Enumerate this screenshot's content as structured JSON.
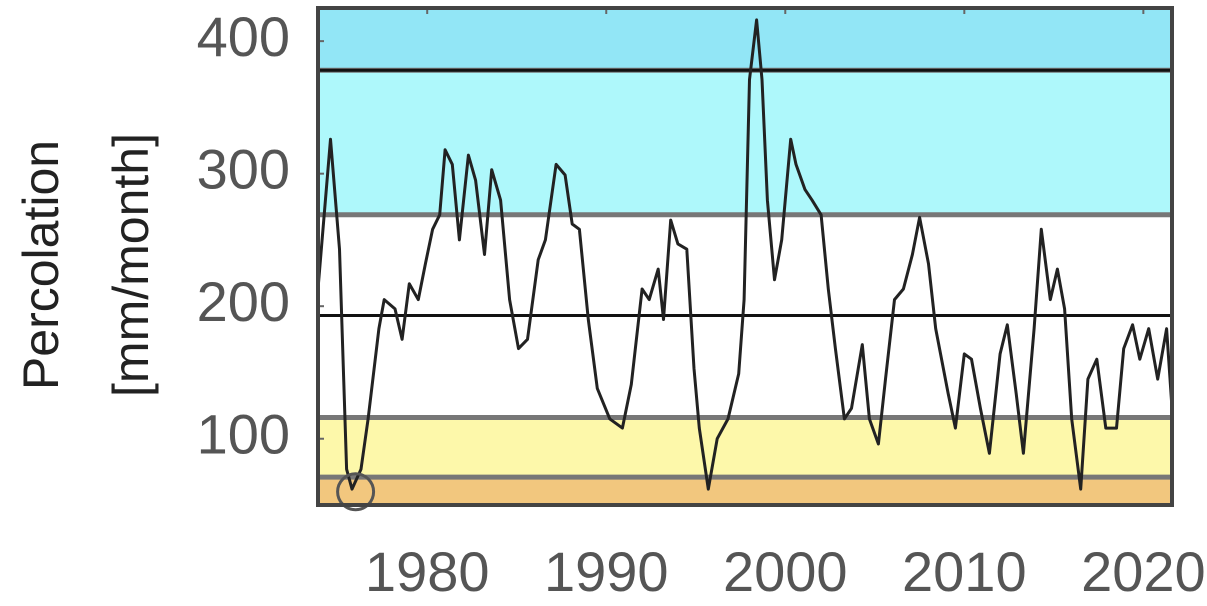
{
  "chart_data": {
    "type": "line",
    "ylabel": [
      "Percolation",
      "[mm/month]"
    ],
    "xlim": [
      1973.9,
      2021.6
    ],
    "xticks": [
      1980,
      1990,
      2000,
      2010,
      2020
    ],
    "ylim": [
      50,
      425
    ],
    "yticks": [
      100,
      200,
      300,
      400
    ],
    "bands": [
      {
        "lower": 50,
        "upper": 71,
        "color": "#f2c77e"
      },
      {
        "lower": 71,
        "upper": 116,
        "color": "#fdf8aa"
      },
      {
        "lower": 116,
        "upper": 269,
        "color": "#ffffff"
      },
      {
        "lower": 269,
        "upper": 378,
        "color": "#aef8fb"
      },
      {
        "lower": 378,
        "upper": 425,
        "color": "#92e6f6"
      }
    ],
    "hlines": [
      193,
      378
    ],
    "highlight": {
      "x": 1976.0,
      "y": 60
    },
    "series": [
      {
        "color": "#222222",
        "x": [
          1973.9,
          1974.6,
          1975.1,
          1975.5,
          1975.8,
          1976.3,
          1976.7,
          1977.3,
          1977.6,
          1978.2,
          1978.6,
          1979.0,
          1979.5,
          1979.9,
          1980.3,
          1980.7,
          1981.0,
          1981.4,
          1981.8,
          1982.3,
          1982.7,
          1983.2,
          1983.6,
          1984.1,
          1984.6,
          1985.1,
          1985.6,
          1986.2,
          1986.6,
          1987.2,
          1987.7,
          1988.1,
          1988.5,
          1989.0,
          1989.5,
          1990.2,
          1990.9,
          1991.4,
          1992.0,
          1992.4,
          1992.9,
          1993.2,
          1993.6,
          1994.0,
          1994.5,
          1994.9,
          1995.2,
          1995.7,
          1996.2,
          1996.8,
          1997.4,
          1997.7,
          1998.0,
          1998.4,
          1998.7,
          1999.0,
          1999.4,
          1999.8,
          2000.3,
          2000.6,
          2001.1,
          2001.5,
          2002.0,
          2002.4,
          2002.8,
          2003.3,
          2003.7,
          2004.3,
          2004.7,
          2005.2,
          2005.6,
          2006.1,
          2006.6,
          2007.1,
          2007.5,
          2008.0,
          2008.4,
          2009.1,
          2009.5,
          2010.0,
          2010.4,
          2010.9,
          2011.4,
          2012.0,
          2012.4,
          2012.9,
          2013.3,
          2013.9,
          2014.3,
          2014.8,
          2015.2,
          2015.6,
          2016.0,
          2016.5,
          2016.9,
          2017.4,
          2017.9,
          2018.5,
          2018.9,
          2019.4,
          2019.8,
          2020.3,
          2020.8,
          2021.3,
          2021.6
        ],
        "values": [
          213,
          326,
          243,
          77,
          62,
          77,
          115,
          183,
          205,
          198,
          175,
          217,
          205,
          232,
          258,
          269,
          318,
          307,
          250,
          314,
          295,
          239,
          303,
          280,
          205,
          168,
          175,
          235,
          250,
          307,
          299,
          262,
          258,
          190,
          138,
          115,
          108,
          141,
          213,
          205,
          228,
          190,
          265,
          247,
          243,
          153,
          108,
          62,
          100,
          115,
          149,
          205,
          371,
          416,
          371,
          280,
          220,
          250,
          326,
          307,
          288,
          280,
          269,
          213,
          168,
          115,
          123,
          171,
          115,
          96,
          145,
          205,
          213,
          239,
          267,
          232,
          183,
          134,
          108,
          164,
          160,
          123,
          89,
          164,
          186,
          134,
          89,
          183,
          258,
          205,
          228,
          198,
          115,
          62,
          145,
          160,
          108,
          108,
          168,
          186,
          160,
          183,
          145,
          183,
          123
        ]
      }
    ]
  }
}
